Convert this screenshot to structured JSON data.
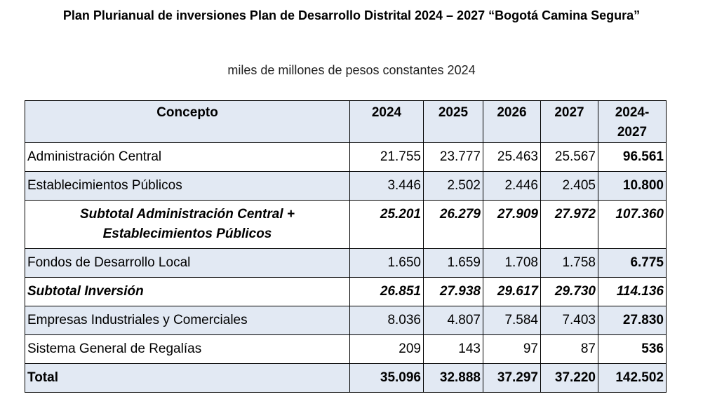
{
  "title": "Plan Plurianual de inversiones Plan de Desarrollo Distrital 2024 – 2027 “Bogotá Camina Segura”",
  "subtitle": "miles de millones de pesos constantes 2024",
  "table": {
    "headers": [
      "Concepto",
      "2024",
      "2025",
      "2026",
      "2027",
      "2024-2027"
    ],
    "rows": [
      {
        "concept": "Administración Central",
        "values": [
          "21.755",
          "23.777",
          "25.463",
          "25.567"
        ],
        "total": "96.561"
      },
      {
        "concept": "Establecimientos Públicos",
        "values": [
          "3.446",
          "2.502",
          "2.446",
          "2.405"
        ],
        "total": "10.800"
      },
      {
        "concept": "Subtotal Administración Central + Establecimientos Públicos",
        "values": [
          "25.201",
          "26.279",
          "27.909",
          "27.972"
        ],
        "total": "107.360"
      },
      {
        "concept": "Fondos de Desarrollo Local",
        "values": [
          "1.650",
          "1.659",
          "1.708",
          "1.758"
        ],
        "total": "6.775"
      },
      {
        "concept": "Subtotal Inversión",
        "values": [
          "26.851",
          "27.938",
          "29.617",
          "29.730"
        ],
        "total": "114.136"
      },
      {
        "concept": "Empresas Industriales y Comerciales",
        "values": [
          "8.036",
          "4.807",
          "7.584",
          "7.403"
        ],
        "total": "27.830"
      },
      {
        "concept": "Sistema General de Regalías",
        "values": [
          "209",
          "143",
          "97",
          "87"
        ],
        "total": "536"
      },
      {
        "concept": "Total",
        "values": [
          "35.096",
          "32.888",
          "37.297",
          "37.220"
        ],
        "total": "142.502"
      }
    ]
  }
}
